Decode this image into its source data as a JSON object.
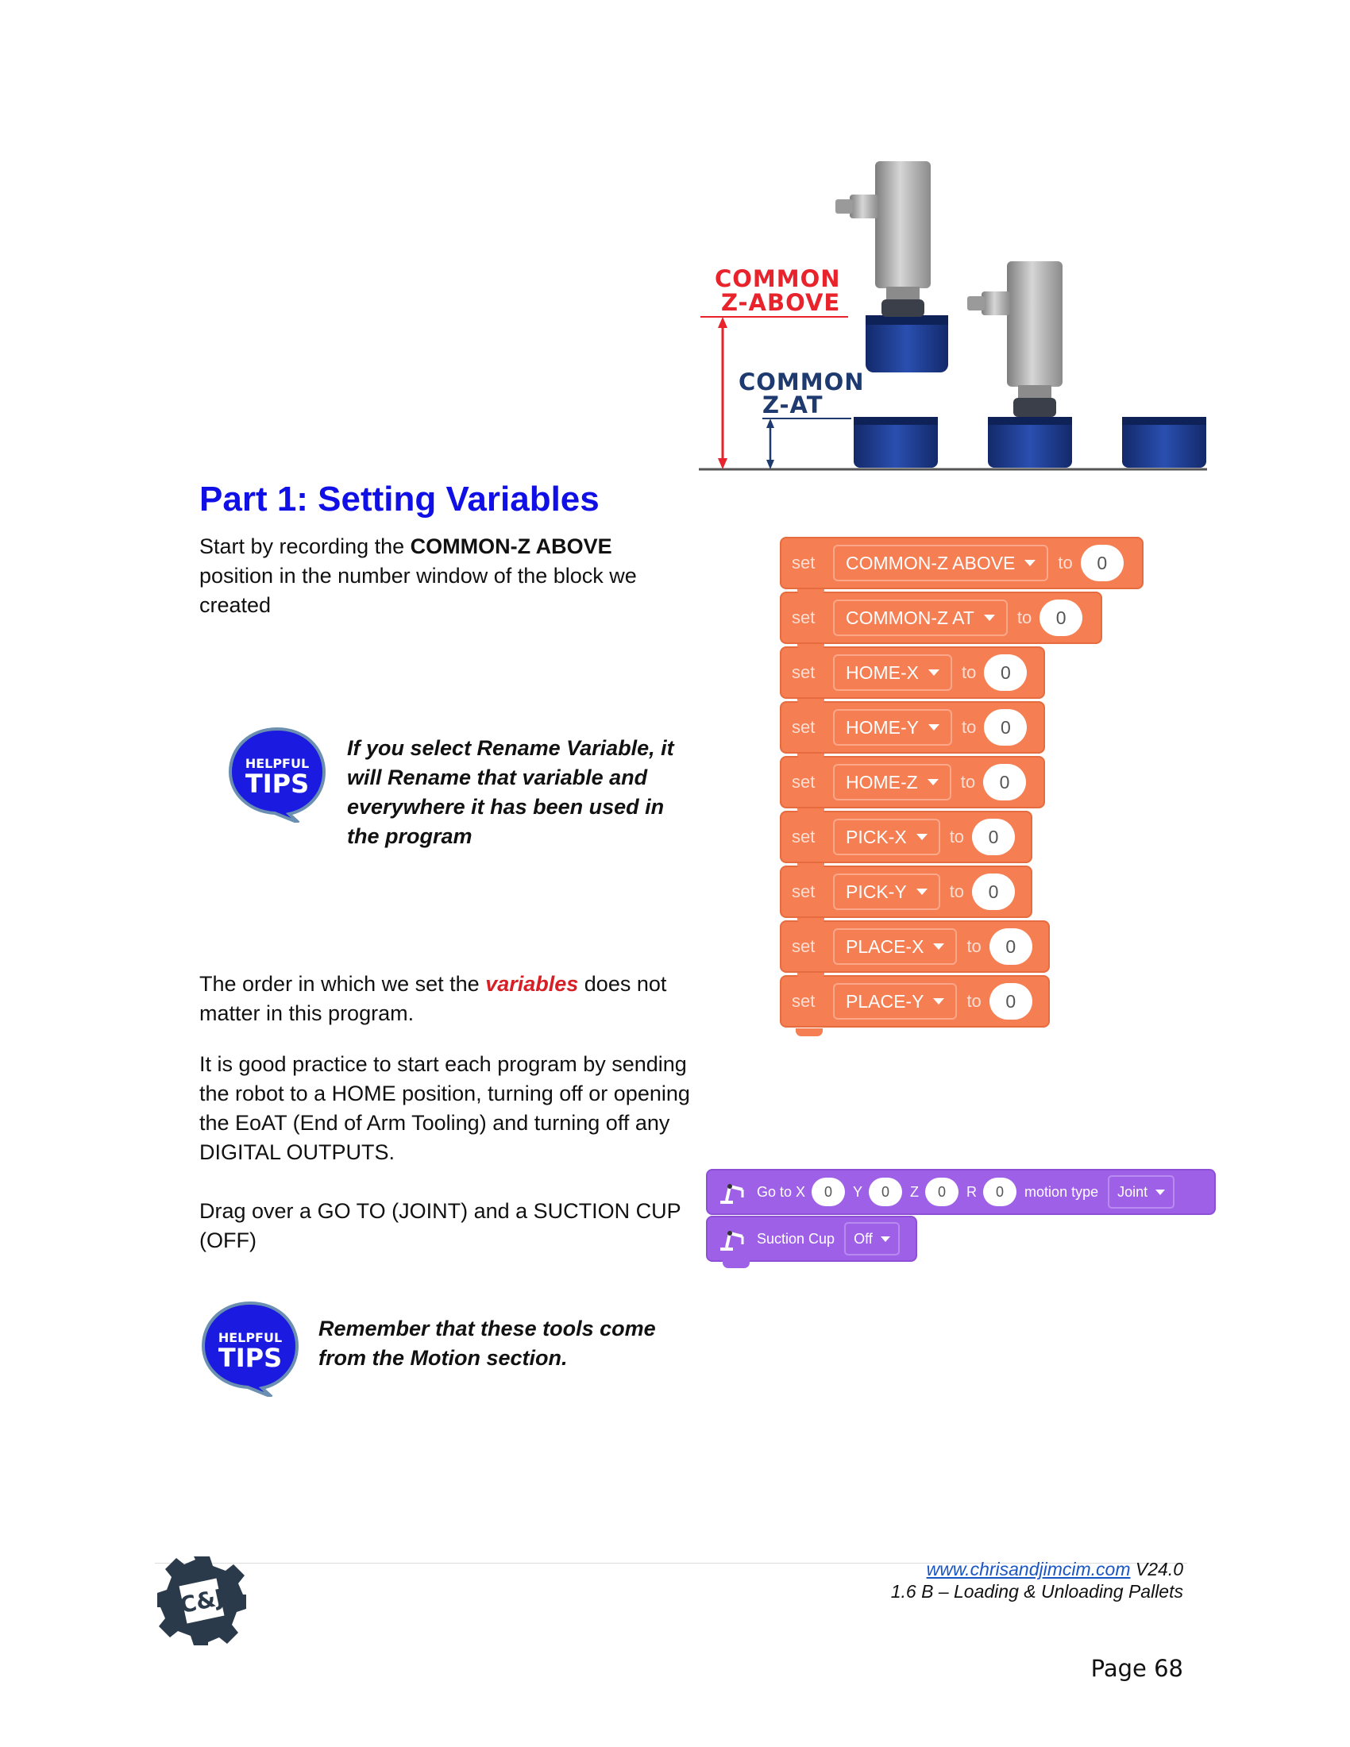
{
  "diagram": {
    "label_above_line1": "COMMON",
    "label_above_line2": "Z-ABOVE",
    "label_at_line1": "COMMON",
    "label_at_line2": "Z-AT"
  },
  "section": {
    "title": "Part 1: Setting Variables",
    "intro_pre": "Start by recording the ",
    "intro_bold": "COMMON-Z ABOVE",
    "intro_post": " position in the number window of the block we created",
    "tip1": "If you select Rename Variable, it will Rename that variable and everywhere it has been used in the program",
    "order_pre": "The order in which we set the ",
    "order_emph": "variables",
    "order_post": " does not matter in this program.",
    "practice": "It is good practice to start each program by sending the robot to a HOME position, turning off or opening the EoAT (End of Arm Tooling) and turning off any DIGITAL OUTPUTS.",
    "drag": "Drag over a GO TO (JOINT) and a SUCTION CUP (OFF)",
    "tip2": "Remember that these tools come from the Motion section."
  },
  "tips_badge": {
    "line1": "HELPFUL",
    "line2": "TIPS"
  },
  "set_blocks": [
    {
      "set": "set",
      "variable": "COMMON-Z ABOVE",
      "to": "to",
      "value": "0"
    },
    {
      "set": "set",
      "variable": "COMMON-Z AT",
      "to": "to",
      "value": "0"
    },
    {
      "set": "set",
      "variable": "HOME-X",
      "to": "to",
      "value": "0"
    },
    {
      "set": "set",
      "variable": "HOME-Y",
      "to": "to",
      "value": "0"
    },
    {
      "set": "set",
      "variable": "HOME-Z",
      "to": "to",
      "value": "0"
    },
    {
      "set": "set",
      "variable": "PICK-X",
      "to": "to",
      "value": "0"
    },
    {
      "set": "set",
      "variable": "PICK-Y",
      "to": "to",
      "value": "0"
    },
    {
      "set": "set",
      "variable": "PLACE-X",
      "to": "to",
      "value": "0"
    },
    {
      "set": "set",
      "variable": "PLACE-Y",
      "to": "to",
      "value": "0"
    }
  ],
  "goto_block": {
    "label": "Go to X",
    "x": "0",
    "y_label": "Y",
    "y": "0",
    "z_label": "Z",
    "z": "0",
    "r_label": "R",
    "r": "0",
    "motion_label": "motion type",
    "motion_value": "Joint"
  },
  "suction_block": {
    "label": "Suction Cup",
    "value": "Off"
  },
  "footer": {
    "url": "www.chrisandjimcim.com",
    "version": " V24.0",
    "subtitle": "1.6 B – Loading & Unloading Pallets",
    "page": "Page 68",
    "logo_text": "C&J"
  },
  "colors": {
    "title_blue": "#1010e6",
    "block_orange": "#f57e52",
    "block_purple": "#9f60e8",
    "label_red": "#e8232b",
    "label_navy": "#1e3a6e",
    "pallet_blue": "#1a3b8f"
  }
}
